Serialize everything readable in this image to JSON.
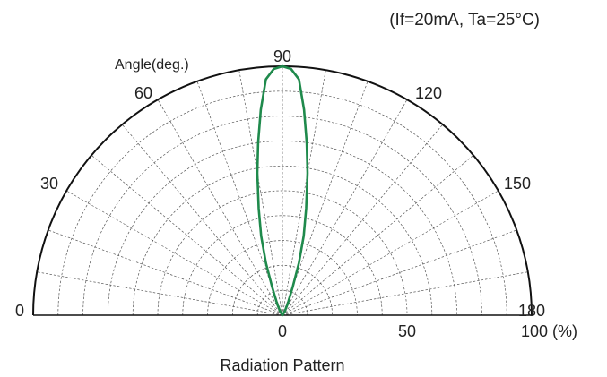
{
  "chart_data": {
    "type": "polar",
    "title": "",
    "caption": "Radiation Pattern",
    "condition_note": "(If=20mA, Ta=25°C)",
    "angle_axis_label": "Angle(deg.)",
    "angle_range": [
      0,
      180
    ],
    "angle_tick_labels": [
      "0",
      "30",
      "60",
      "90",
      "120",
      "150",
      "180"
    ],
    "angle_ticks": [
      0,
      30,
      60,
      90,
      120,
      150,
      180
    ],
    "radial_range": [
      0,
      100
    ],
    "radial_tick_labels": [
      "0",
      "50",
      "100 (%)"
    ],
    "radial_ticks": [
      0,
      50,
      100
    ],
    "grid": true,
    "series": [
      {
        "color": "#1f8a4c",
        "points": [
          {
            "angle": 60,
            "r": 2
          },
          {
            "angle": 65,
            "r": 5
          },
          {
            "angle": 70,
            "r": 12
          },
          {
            "angle": 72.5,
            "r": 22
          },
          {
            "angle": 75,
            "r": 33
          },
          {
            "angle": 77.5,
            "r": 44
          },
          {
            "angle": 80,
            "r": 58
          },
          {
            "angle": 82,
            "r": 70
          },
          {
            "angle": 84,
            "r": 83
          },
          {
            "angle": 86,
            "r": 95
          },
          {
            "angle": 88,
            "r": 99
          },
          {
            "angle": 90,
            "r": 100
          },
          {
            "angle": 92,
            "r": 99
          },
          {
            "angle": 94,
            "r": 95
          },
          {
            "angle": 96,
            "r": 83
          },
          {
            "angle": 98,
            "r": 70
          },
          {
            "angle": 100,
            "r": 58
          },
          {
            "angle": 102.5,
            "r": 44
          },
          {
            "angle": 105,
            "r": 33
          },
          {
            "angle": 107.5,
            "r": 22
          },
          {
            "angle": 110,
            "r": 12
          },
          {
            "angle": 115,
            "r": 5
          },
          {
            "angle": 120,
            "r": 2
          }
        ]
      }
    ]
  }
}
